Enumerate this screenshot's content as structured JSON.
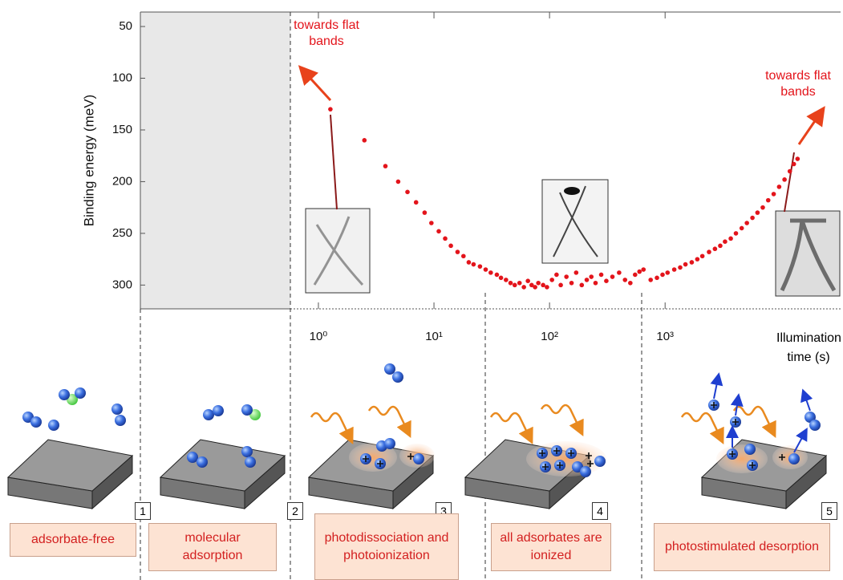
{
  "chart_data": {
    "type": "scatter",
    "y_label": "Binding energy (meV)",
    "x_label": "Illumination time (s)",
    "x_log": true,
    "xlim": [
      0.6,
      33000
    ],
    "xticks": [
      {
        "value": 1,
        "label": "10⁰"
      },
      {
        "value": 10,
        "label": "10¹"
      },
      {
        "value": 100,
        "label": "10²"
      },
      {
        "value": 1000,
        "label": "10³"
      }
    ],
    "ylim": [
      323,
      36
    ],
    "yticks": [
      50,
      100,
      150,
      200,
      250,
      300
    ],
    "annotations": [
      "towards flat bands",
      "towards flat bands"
    ],
    "x": [
      1.27,
      2.5,
      3.8,
      4.9,
      5.9,
      7,
      8.3,
      9.5,
      11,
      12.5,
      14,
      16,
      18,
      20,
      22,
      25,
      28,
      31,
      35,
      38,
      42,
      46,
      50,
      55,
      60,
      65,
      70,
      75,
      80,
      88,
      95,
      105,
      115,
      125,
      140,
      155,
      170,
      190,
      210,
      230,
      250,
      280,
      310,
      350,
      400,
      450,
      500,
      550,
      600,
      650,
      750,
      850,
      950,
      1050,
      1200,
      1350,
      1500,
      1700,
      1900,
      2100,
      2400,
      2700,
      3000,
      3300,
      3700,
      4100,
      4600,
      5100,
      5700,
      6300,
      7000,
      7800,
      8700,
      9700,
      10800,
      12000,
      13000,
      14000
    ],
    "series": [
      {
        "color": "#e3141b",
        "values": [
          130,
          160,
          185,
          200,
          210,
          220,
          230,
          240,
          248,
          255,
          262,
          268,
          272,
          278,
          280,
          282,
          285,
          288,
          290,
          293,
          295,
          298,
          300,
          298,
          302,
          296,
          300,
          302,
          298,
          300,
          302,
          295,
          290,
          300,
          292,
          298,
          288,
          300,
          295,
          292,
          298,
          290,
          296,
          292,
          288,
          295,
          298,
          290,
          287,
          285,
          295,
          293,
          290,
          288,
          285,
          283,
          280,
          278,
          275,
          272,
          268,
          265,
          262,
          258,
          255,
          250,
          245,
          240,
          235,
          230,
          225,
          218,
          212,
          205,
          198,
          190,
          183,
          178
        ]
      }
    ]
  },
  "panels": [
    {
      "number": "1",
      "caption": "adsorbate-free"
    },
    {
      "number": "2",
      "caption": "molecular adsorption"
    },
    {
      "number": "3",
      "caption": "photodissociation and photoionization"
    },
    {
      "number": "4",
      "caption": "all adsorbates are ionized"
    },
    {
      "number": "5",
      "caption": "photostimulated desorption"
    }
  ]
}
